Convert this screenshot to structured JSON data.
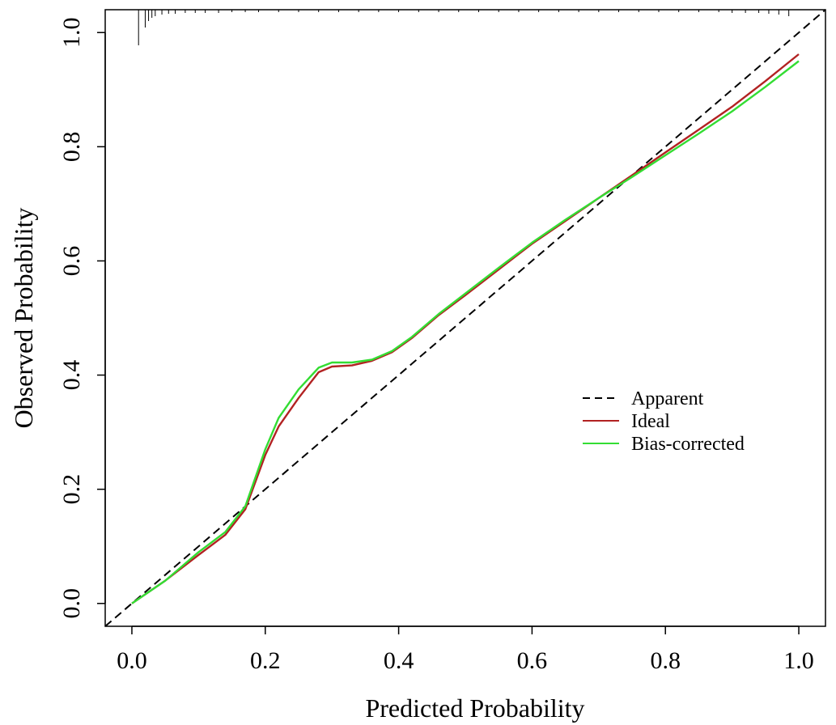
{
  "chart_data": {
    "type": "line",
    "title": "",
    "xlabel": "Predicted Probability",
    "ylabel": "Observed Probability",
    "xlim": [
      -0.04,
      1.04
    ],
    "ylim": [
      -0.04,
      1.04
    ],
    "xticks": [
      "0.0",
      "0.2",
      "0.4",
      "0.6",
      "0.8",
      "1.0"
    ],
    "yticks": [
      "0.0",
      "0.2",
      "0.4",
      "0.6",
      "0.8",
      "1.0"
    ],
    "grid": false,
    "legend_position": "right",
    "series": [
      {
        "name": "Apparent",
        "color": "#000000",
        "style": "dashed",
        "x": [
          -0.04,
          1.04
        ],
        "y": [
          -0.04,
          1.04
        ]
      },
      {
        "name": "Ideal",
        "color": "#b22222",
        "style": "solid",
        "x": [
          0.0,
          0.05,
          0.1,
          0.14,
          0.17,
          0.2,
          0.22,
          0.25,
          0.28,
          0.3,
          0.33,
          0.36,
          0.39,
          0.42,
          0.46,
          0.5,
          0.55,
          0.6,
          0.65,
          0.7,
          0.75,
          0.8,
          0.85,
          0.9,
          0.95,
          1.0
        ],
        "y": [
          0.0,
          0.04,
          0.085,
          0.12,
          0.165,
          0.26,
          0.31,
          0.36,
          0.405,
          0.415,
          0.417,
          0.425,
          0.44,
          0.465,
          0.505,
          0.54,
          0.585,
          0.63,
          0.67,
          0.71,
          0.75,
          0.79,
          0.83,
          0.87,
          0.915,
          0.962
        ]
      },
      {
        "name": "Bias-corrected",
        "color": "#33dd33",
        "style": "solid",
        "x": [
          0.0,
          0.05,
          0.1,
          0.14,
          0.17,
          0.2,
          0.22,
          0.25,
          0.28,
          0.3,
          0.33,
          0.36,
          0.39,
          0.42,
          0.46,
          0.5,
          0.55,
          0.6,
          0.65,
          0.7,
          0.75,
          0.8,
          0.85,
          0.9,
          0.95,
          1.0
        ],
        "y": [
          0.0,
          0.04,
          0.09,
          0.125,
          0.17,
          0.27,
          0.325,
          0.375,
          0.413,
          0.422,
          0.422,
          0.427,
          0.442,
          0.467,
          0.507,
          0.543,
          0.588,
          0.632,
          0.672,
          0.71,
          0.747,
          0.785,
          0.823,
          0.862,
          0.905,
          0.95
        ]
      }
    ],
    "rug_x": [
      0.01,
      0.02,
      0.025,
      0.03,
      0.035,
      0.045,
      0.055,
      0.065,
      0.08,
      0.095,
      0.11,
      0.13,
      0.15,
      0.17,
      0.19,
      0.22,
      0.25,
      0.28,
      0.31,
      0.34,
      0.37,
      0.4,
      0.43,
      0.46,
      0.49,
      0.52,
      0.55,
      0.58,
      0.61,
      0.64,
      0.67,
      0.7,
      0.73,
      0.76,
      0.79,
      0.82,
      0.85,
      0.88,
      0.9,
      0.92,
      0.94,
      0.955,
      0.97,
      0.985
    ],
    "rug_len": [
      44,
      22,
      14,
      10,
      8,
      6,
      5,
      5,
      4,
      4,
      4,
      4,
      3,
      3,
      3,
      3,
      3,
      3,
      3,
      3,
      3,
      3,
      3,
      3,
      3,
      3,
      3,
      3,
      3,
      3,
      3,
      3,
      3,
      3,
      3,
      3,
      3,
      3,
      4,
      4,
      4,
      5,
      6,
      8
    ]
  }
}
